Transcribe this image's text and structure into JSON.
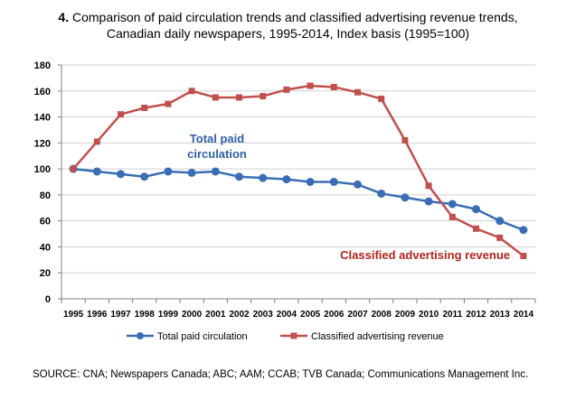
{
  "figure": {
    "number": "4.",
    "title_line1": "Comparison of paid circulation trends and classified advertising revenue trends,",
    "title_line2": "Canadian daily newspapers, 1995-2014, Index basis (1995=100)",
    "source": "SOURCE:  CNA; Newspapers Canada; ABC; AAM; CCAB; TVB Canada; Communications Management Inc."
  },
  "chart_data": {
    "type": "line",
    "title": "Comparison of paid circulation trends and classified advertising revenue trends, Canadian daily newspapers, 1995-2014, Index basis (1995=100)",
    "x": [
      "1995",
      "1996",
      "1997",
      "1998",
      "1999",
      "2000",
      "2001",
      "2002",
      "2003",
      "2004",
      "2005",
      "2006",
      "2007",
      "2008",
      "2009",
      "2010",
      "2011",
      "2012",
      "2013",
      "2014"
    ],
    "ylim": [
      0,
      180
    ],
    "yticks": [
      0,
      20,
      40,
      60,
      80,
      100,
      120,
      140,
      160,
      180
    ],
    "grid": true,
    "legend_position": "bottom",
    "series": [
      {
        "name": "Total paid circulation",
        "annotation_line1": "Total paid",
        "annotation_line2": "circulation",
        "color": "#3a6db5",
        "marker": "circle",
        "values": [
          100,
          98,
          96,
          94,
          98,
          97,
          98,
          94,
          93,
          92,
          90,
          90,
          88,
          81,
          78,
          75,
          73,
          69,
          60,
          53
        ]
      },
      {
        "name": "Classified advertising revenue",
        "annotation_line1": "Classified advertising revenue",
        "color": "#c0504d",
        "marker": "square",
        "values": [
          100,
          121,
          142,
          147,
          150,
          160,
          155,
          155,
          156,
          161,
          164,
          163,
          159,
          154,
          122,
          87,
          63,
          54,
          47,
          33
        ]
      }
    ]
  }
}
